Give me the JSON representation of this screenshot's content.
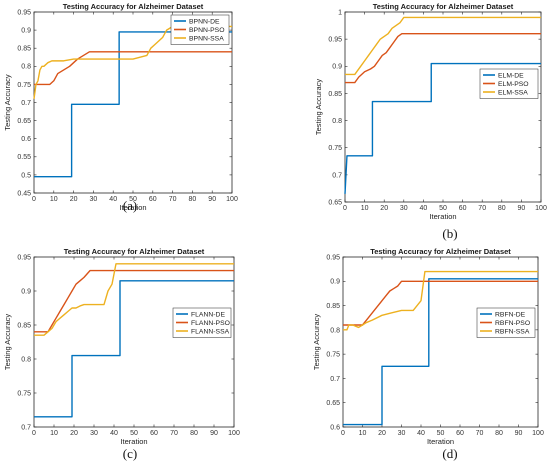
{
  "figure": {
    "panel_labels": [
      "(a)",
      "(b)",
      "(c)",
      "(d)"
    ]
  },
  "colors": {
    "DE": "#0072BD",
    "PSO": "#D95319",
    "SSA": "#EDB120"
  },
  "chart_data": [
    {
      "type": "line",
      "title": "Testing Accuracy for Alzheimer Dataset",
      "xlabel": "Iteration",
      "ylabel": "Testing Accuracy",
      "xlim": [
        0,
        100
      ],
      "ylim": [
        0.45,
        0.95
      ],
      "xticks": [
        "0",
        "10",
        "20",
        "30",
        "40",
        "50",
        "60",
        "70",
        "80",
        "90",
        "100"
      ],
      "yticks": [
        "0.45",
        "0.5",
        "0.55",
        "0.6",
        "0.65",
        "0.7",
        "0.75",
        "0.8",
        "0.85",
        "0.9",
        "0.95"
      ],
      "grid": false,
      "legend": "top-right",
      "series": [
        {
          "name": "BPNN-DE",
          "color": "#0072BD",
          "x": [
            0,
            19,
            19,
            43,
            43,
            100
          ],
          "y": [
            0.495,
            0.495,
            0.695,
            0.695,
            0.895,
            0.895
          ]
        },
        {
          "name": "BPNN-PSO",
          "color": "#D95319",
          "x": [
            0,
            8,
            10,
            12,
            15,
            18,
            20,
            22,
            25,
            28,
            30,
            100
          ],
          "y": [
            0.75,
            0.75,
            0.76,
            0.78,
            0.79,
            0.8,
            0.81,
            0.82,
            0.83,
            0.84,
            0.84,
            0.84
          ]
        },
        {
          "name": "BPNN-SSA",
          "color": "#EDB120",
          "x": [
            0,
            1,
            2,
            3,
            4,
            5,
            7,
            9,
            10,
            15,
            20,
            50,
            57,
            59,
            61,
            63,
            65,
            67,
            70,
            100
          ],
          "y": [
            0.71,
            0.75,
            0.76,
            0.79,
            0.8,
            0.8,
            0.81,
            0.815,
            0.815,
            0.815,
            0.82,
            0.82,
            0.83,
            0.85,
            0.86,
            0.87,
            0.88,
            0.9,
            0.91,
            0.91
          ]
        }
      ]
    },
    {
      "type": "line",
      "title": "Testing Accuracy for Alzheimer Dataset",
      "xlabel": "Iteration",
      "ylabel": "Testing Accuracy",
      "xlim": [
        0,
        100
      ],
      "ylim": [
        0.65,
        1
      ],
      "xticks": [
        "0",
        "10",
        "20",
        "30",
        "40",
        "50",
        "60",
        "70",
        "80",
        "90",
        "100"
      ],
      "yticks": [
        "0.65",
        "0.7",
        "0.75",
        "0.8",
        "0.85",
        "0.9",
        "0.95",
        "1"
      ],
      "grid": false,
      "legend": "right",
      "series": [
        {
          "name": "ELM-DE",
          "color": "#0072BD",
          "x": [
            0,
            1,
            1,
            14,
            14,
            44,
            44,
            100
          ],
          "y": [
            0.665,
            0.735,
            0.735,
            0.735,
            0.835,
            0.835,
            0.905,
            0.905
          ]
        },
        {
          "name": "ELM-PSO",
          "color": "#D95319",
          "x": [
            0,
            5,
            7,
            10,
            13,
            15,
            17,
            19,
            21,
            23,
            25,
            27,
            29,
            100
          ],
          "y": [
            0.87,
            0.87,
            0.88,
            0.89,
            0.895,
            0.9,
            0.91,
            0.92,
            0.925,
            0.935,
            0.945,
            0.955,
            0.96,
            0.96
          ]
        },
        {
          "name": "ELM-SSA",
          "color": "#EDB120",
          "x": [
            0,
            5,
            6,
            8,
            10,
            12,
            14,
            16,
            18,
            20,
            22,
            24,
            26,
            28,
            30,
            100
          ],
          "y": [
            0.885,
            0.885,
            0.89,
            0.9,
            0.91,
            0.92,
            0.93,
            0.94,
            0.95,
            0.955,
            0.96,
            0.97,
            0.975,
            0.98,
            0.99,
            0.99
          ]
        }
      ]
    },
    {
      "type": "line",
      "title": "Testing Accuracy for Alzheimer Dataset",
      "xlabel": "Iteration",
      "ylabel": "Testing Accuracy",
      "xlim": [
        0,
        100
      ],
      "ylim": [
        0.7,
        0.95
      ],
      "xticks": [
        "0",
        "10",
        "20",
        "30",
        "40",
        "50",
        "60",
        "70",
        "80",
        "90",
        "100"
      ],
      "yticks": [
        "0.7",
        "0.75",
        "0.8",
        "0.85",
        "0.9",
        "0.95"
      ],
      "grid": false,
      "legend": "right",
      "series": [
        {
          "name": "FLANN-DE",
          "color": "#0072BD",
          "x": [
            0,
            19,
            19,
            43,
            43,
            100
          ],
          "y": [
            0.715,
            0.715,
            0.805,
            0.805,
            0.915,
            0.915
          ]
        },
        {
          "name": "FLANN-PSO",
          "color": "#D95319",
          "x": [
            0,
            7,
            9,
            11,
            13,
            15,
            17,
            19,
            21,
            23,
            25,
            28,
            100
          ],
          "y": [
            0.84,
            0.84,
            0.85,
            0.86,
            0.87,
            0.88,
            0.89,
            0.9,
            0.91,
            0.915,
            0.92,
            0.93,
            0.93
          ]
        },
        {
          "name": "FLANN-SSA",
          "color": "#EDB120",
          "x": [
            0,
            5,
            7,
            9,
            11,
            13,
            15,
            17,
            19,
            21,
            23,
            25,
            35,
            37,
            39,
            41,
            100
          ],
          "y": [
            0.835,
            0.835,
            0.84,
            0.845,
            0.855,
            0.86,
            0.865,
            0.87,
            0.875,
            0.875,
            0.878,
            0.88,
            0.88,
            0.9,
            0.91,
            0.94,
            0.94
          ]
        }
      ]
    },
    {
      "type": "line",
      "title": "Testing Accuracy for Alzheimer Dataset",
      "xlabel": "Iteration",
      "ylabel": "Testing Accuracy",
      "xlim": [
        0,
        100
      ],
      "ylim": [
        0.6,
        0.95
      ],
      "xticks": [
        "0",
        "10",
        "20",
        "30",
        "40",
        "50",
        "60",
        "70",
        "80",
        "90",
        "100"
      ],
      "yticks": [
        "0.6",
        "0.65",
        "0.7",
        "0.75",
        "0.8",
        "0.85",
        "0.9",
        "0.95"
      ],
      "grid": false,
      "legend": "right",
      "series": [
        {
          "name": "RBFN-DE",
          "color": "#0072BD",
          "x": [
            0,
            20,
            20,
            44,
            44,
            100
          ],
          "y": [
            0.605,
            0.605,
            0.725,
            0.725,
            0.905,
            0.905
          ]
        },
        {
          "name": "RBFN-PSO",
          "color": "#D95319",
          "x": [
            0,
            10,
            12,
            14,
            16,
            18,
            20,
            22,
            24,
            26,
            28,
            30,
            100
          ],
          "y": [
            0.81,
            0.81,
            0.82,
            0.83,
            0.84,
            0.85,
            0.86,
            0.87,
            0.88,
            0.885,
            0.89,
            0.9,
            0.9
          ]
        },
        {
          "name": "RBFN-SSA",
          "color": "#EDB120",
          "x": [
            0,
            2,
            3,
            5,
            8,
            10,
            12,
            15,
            20,
            25,
            30,
            36,
            38,
            40,
            42,
            100
          ],
          "y": [
            0.8,
            0.8,
            0.81,
            0.81,
            0.805,
            0.81,
            0.815,
            0.82,
            0.83,
            0.835,
            0.84,
            0.84,
            0.85,
            0.86,
            0.92,
            0.92
          ]
        }
      ]
    }
  ]
}
